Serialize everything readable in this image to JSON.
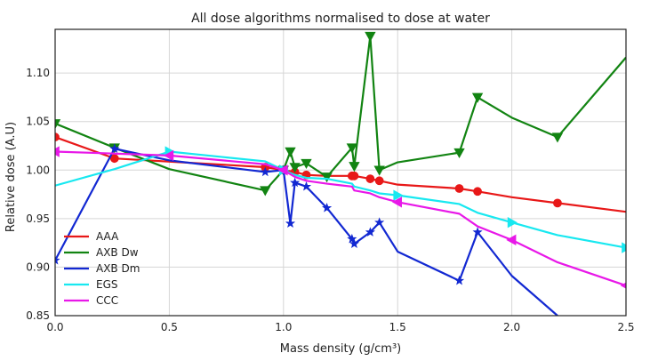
{
  "chart_data": {
    "type": "line",
    "title": "All dose algorithms normalised to dose at water",
    "xlabel": "Mass density (g/cm³)",
    "ylabel": "Relative dose (A.U)",
    "xlim": [
      0,
      2.5
    ],
    "ylim": [
      0.85,
      1.145
    ],
    "xticks": [
      "0.0",
      "0.5",
      "1.0",
      "1.5",
      "2.0",
      "2.5"
    ],
    "yticks": [
      "0.85",
      "0.90",
      "0.95",
      "1.00",
      "1.05",
      "1.10"
    ],
    "legend": "lower-left",
    "series": [
      {
        "name": "AAA",
        "color": "#e81818",
        "marker": "circle",
        "x": [
          0,
          0.26,
          0.92,
          1.0,
          1.05,
          1.1,
          1.19,
          1.3,
          1.31,
          1.38,
          1.42,
          1.5,
          1.77,
          1.85,
          2.0,
          2.2,
          2.5
        ],
        "y": [
          1.034,
          1.012,
          1.003,
          1.0,
          0.998,
          0.995,
          0.994,
          0.994,
          0.994,
          0.991,
          0.989,
          0.985,
          0.981,
          0.978,
          0.972,
          0.966,
          0.957
        ],
        "markers": [
          0,
          1,
          2,
          3,
          4,
          5,
          7,
          8,
          9,
          10,
          12,
          13,
          15
        ]
      },
      {
        "name": "AXB Dw",
        "color": "#128412",
        "marker": "triangle-down",
        "x": [
          0,
          0.26,
          0.5,
          0.92,
          1.0,
          1.03,
          1.05,
          1.1,
          1.19,
          1.3,
          1.31,
          1.38,
          1.42,
          1.5,
          1.77,
          1.85,
          2.0,
          2.2,
          2.5
        ],
        "y": [
          1.048,
          1.023,
          1.001,
          0.979,
          1.0,
          1.019,
          1.003,
          1.007,
          0.993,
          1.023,
          1.004,
          1.138,
          1.0,
          1.008,
          1.018,
          1.075,
          1.054,
          1.034,
          1.116
        ],
        "markers": [
          0,
          1,
          3,
          4,
          5,
          6,
          7,
          8,
          9,
          10,
          11,
          12,
          14,
          15,
          17
        ]
      },
      {
        "name": "AXB Dm",
        "color": "#1228d2",
        "marker": "star",
        "x": [
          0,
          0.26,
          0.5,
          0.92,
          1.0,
          1.03,
          1.05,
          1.1,
          1.19,
          1.3,
          1.31,
          1.38,
          1.42,
          1.5,
          1.77,
          1.85,
          2.0,
          2.2
        ],
        "y": [
          0.907,
          1.022,
          1.01,
          0.998,
          1.0,
          0.945,
          0.987,
          0.983,
          0.961,
          0.929,
          0.924,
          0.936,
          0.946,
          0.916,
          0.886,
          0.936,
          0.891,
          0.85
        ],
        "markers": [
          0,
          1,
          3,
          4,
          5,
          6,
          7,
          8,
          9,
          10,
          11,
          12,
          14,
          15
        ]
      },
      {
        "name": "EGS",
        "color": "#18e8f0",
        "marker": "triangle-right",
        "x": [
          0,
          0.26,
          0.5,
          0.92,
          1.0,
          1.05,
          1.1,
          1.19,
          1.3,
          1.31,
          1.38,
          1.42,
          1.5,
          1.77,
          1.85,
          2.0,
          2.2,
          2.5
        ],
        "y": [
          0.984,
          1.001,
          1.019,
          1.009,
          1.0,
          0.995,
          0.992,
          0.991,
          0.986,
          0.983,
          0.979,
          0.976,
          0.974,
          0.965,
          0.956,
          0.946,
          0.933,
          0.92
        ],
        "markers": [
          2,
          4,
          12,
          15,
          17
        ]
      },
      {
        "name": "CCC",
        "color": "#e818e8",
        "marker": "triangle-left",
        "x": [
          0,
          0.26,
          0.5,
          0.92,
          1.0,
          1.05,
          1.1,
          1.19,
          1.3,
          1.31,
          1.38,
          1.42,
          1.5,
          1.77,
          1.85,
          2.0,
          2.2,
          2.5
        ],
        "y": [
          1.019,
          1.017,
          1.015,
          1.006,
          1.0,
          0.993,
          0.989,
          0.986,
          0.983,
          0.979,
          0.976,
          0.972,
          0.967,
          0.955,
          0.942,
          0.928,
          0.905,
          0.881
        ],
        "markers": [
          0,
          2,
          4,
          12,
          15,
          17
        ]
      }
    ]
  }
}
